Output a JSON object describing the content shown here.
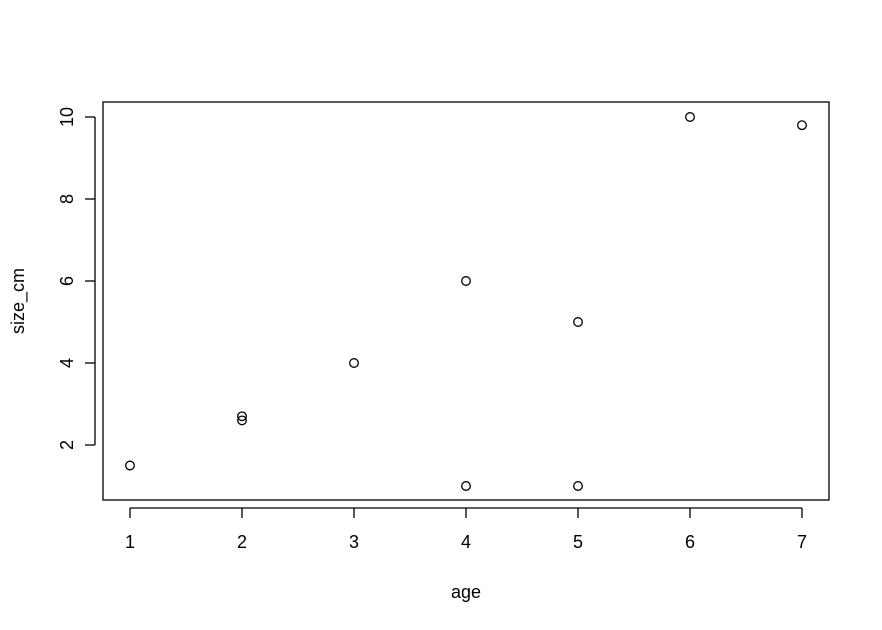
{
  "chart_data": {
    "type": "scatter",
    "title": "",
    "xlabel": "age",
    "ylabel": "size_cm",
    "xlim": [
      1,
      7
    ],
    "ylim": [
      1,
      10
    ],
    "x_ticks": [
      1,
      2,
      3,
      4,
      5,
      6,
      7
    ],
    "y_ticks": [
      2,
      4,
      6,
      8,
      10
    ],
    "x_tick_labels": [
      "1",
      "2",
      "3",
      "4",
      "5",
      "6",
      "7"
    ],
    "y_tick_labels": [
      "2",
      "4",
      "6",
      "8",
      "10"
    ],
    "grid": false,
    "legend": "none",
    "marker": "open-circle",
    "points": [
      {
        "x": 1,
        "y": 1.5
      },
      {
        "x": 2,
        "y": 2.6
      },
      {
        "x": 2,
        "y": 2.7
      },
      {
        "x": 3,
        "y": 4.0
      },
      {
        "x": 4,
        "y": 6.0
      },
      {
        "x": 4,
        "y": 1.0
      },
      {
        "x": 5,
        "y": 5.0
      },
      {
        "x": 5,
        "y": 1.0
      },
      {
        "x": 6,
        "y": 10.0
      },
      {
        "x": 7,
        "y": 9.8
      }
    ]
  }
}
